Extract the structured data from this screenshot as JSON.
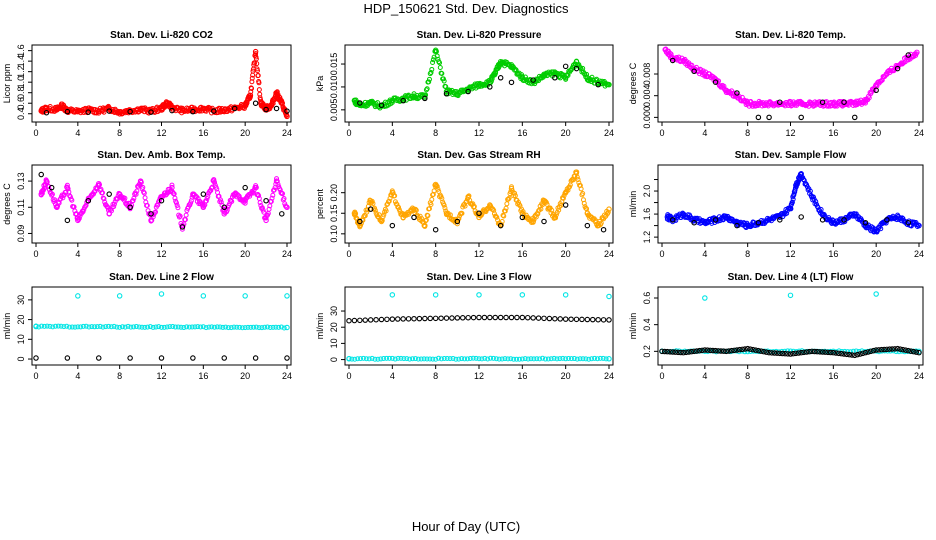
{
  "figure": {
    "title": "HDP_150621  Std. Dev. Diagnostics",
    "xlabel": "Hour of Day (UTC)"
  },
  "chart_data": [
    {
      "type": "scatter",
      "title": "Stan. Dev. Li-820 CO2",
      "ylabel": "Licor ppm",
      "xlim": [
        0,
        24
      ],
      "ylim": [
        0.3,
        1.65
      ],
      "xticks": [
        0,
        4,
        8,
        12,
        16,
        20,
        24
      ],
      "yticks": [
        0.4,
        0.6,
        0.8,
        1.0,
        1.2,
        1.4,
        1.6
      ],
      "ytick_labels": [
        "0.4",
        "0.6",
        "0.8",
        "1.0",
        "1.2",
        "1.4",
        "1.6"
      ],
      "series": [
        {
          "name": "main",
          "color": "#ff0000",
          "x": [
            0.5,
            1,
            2,
            2.5,
            3,
            4,
            5,
            6,
            7,
            8,
            9,
            10,
            11,
            12,
            12.5,
            13,
            14,
            15,
            16,
            17,
            18,
            19,
            20,
            20.5,
            21,
            21.5,
            22,
            22.5,
            23,
            23.5,
            24
          ],
          "y": [
            0.45,
            0.5,
            0.48,
            0.55,
            0.46,
            0.44,
            0.47,
            0.45,
            0.5,
            0.43,
            0.46,
            0.48,
            0.45,
            0.5,
            0.6,
            0.52,
            0.46,
            0.48,
            0.5,
            0.45,
            0.47,
            0.5,
            0.55,
            0.75,
            1.58,
            0.6,
            0.5,
            0.55,
            0.8,
            0.6,
            0.35
          ]
        },
        {
          "name": "overlay",
          "color": "#000000",
          "x": [
            1,
            3,
            5,
            7,
            9,
            11,
            13,
            15,
            17,
            19,
            21,
            22,
            23,
            24
          ],
          "y": [
            0.42,
            0.44,
            0.43,
            0.45,
            0.44,
            0.43,
            0.46,
            0.44,
            0.45,
            0.5,
            0.6,
            0.48,
            0.5,
            0.45
          ]
        }
      ]
    },
    {
      "type": "scatter",
      "title": "Stan. Dev. Li-820 Pressure",
      "ylabel": "kPa",
      "xlim": [
        0,
        24
      ],
      "ylim": [
        0.003,
        0.0185
      ],
      "xticks": [
        0,
        4,
        8,
        12,
        16,
        20,
        24
      ],
      "yticks": [
        0.005,
        0.01,
        0.015
      ],
      "ytick_labels": [
        "0.005",
        "0.010",
        "0.015"
      ],
      "series": [
        {
          "name": "main",
          "color": "#00cc00",
          "x": [
            0.5,
            1,
            2,
            3,
            4,
            5,
            6,
            7,
            8,
            9,
            10,
            11,
            12,
            13,
            13.5,
            14,
            15,
            16,
            17,
            18,
            19,
            20,
            21,
            22,
            23,
            24
          ],
          "y": [
            0.007,
            0.006,
            0.0065,
            0.0058,
            0.007,
            0.0075,
            0.008,
            0.0078,
            0.018,
            0.009,
            0.0085,
            0.0095,
            0.0105,
            0.011,
            0.013,
            0.0155,
            0.0145,
            0.012,
            0.011,
            0.0125,
            0.013,
            0.012,
            0.0155,
            0.012,
            0.011,
            0.0105
          ]
        },
        {
          "name": "overlay",
          "color": "#000000",
          "x": [
            1,
            3,
            5,
            7,
            9,
            11,
            13,
            14,
            15,
            17,
            19,
            20,
            21,
            23
          ],
          "y": [
            0.0065,
            0.006,
            0.007,
            0.0075,
            0.0085,
            0.009,
            0.01,
            0.012,
            0.011,
            0.0115,
            0.012,
            0.0145,
            0.014,
            0.0105
          ]
        }
      ]
    },
    {
      "type": "scatter",
      "title": "Stan. Dev. Li-820 Temp.",
      "ylabel": "degrees C",
      "xlim": [
        0,
        24
      ],
      "ylim": [
        -0.0003,
        0.0128
      ],
      "xticks": [
        0,
        4,
        8,
        12,
        16,
        20,
        24
      ],
      "yticks": [
        0.0,
        0.004,
        0.008
      ],
      "ytick_labels": [
        "0.000",
        "0.004",
        "0.008"
      ],
      "series": [
        {
          "name": "main",
          "color": "#ff00ff",
          "x": [
            0.3,
            1,
            2,
            3,
            4,
            5,
            6,
            7,
            8,
            9,
            10,
            11,
            12,
            13,
            14,
            15,
            16,
            17,
            18,
            19,
            20,
            21,
            22,
            23,
            23.8
          ],
          "y": [
            0.0125,
            0.011,
            0.0105,
            0.009,
            0.008,
            0.007,
            0.005,
            0.004,
            0.0025,
            0.0025,
            0.0025,
            0.0025,
            0.0025,
            0.0025,
            0.0025,
            0.0025,
            0.0025,
            0.0025,
            0.0025,
            0.003,
            0.006,
            0.008,
            0.0095,
            0.011,
            0.012
          ]
        },
        {
          "name": "overlay",
          "color": "#000000",
          "x": [
            1,
            3,
            5,
            7,
            9,
            10,
            11,
            13,
            15,
            17,
            18,
            20,
            22,
            23
          ],
          "y": [
            0.0105,
            0.0085,
            0.0065,
            0.0045,
            0.0,
            0.0,
            0.0028,
            0.0,
            0.0028,
            0.0028,
            0.0,
            0.005,
            0.009,
            0.0115
          ]
        }
      ]
    },
    {
      "type": "scatter",
      "title": "Stan. Dev. Amb. Box Temp.",
      "ylabel": "degrees C",
      "xlim": [
        0,
        24
      ],
      "ylim": [
        0.085,
        0.14
      ],
      "xticks": [
        0,
        4,
        8,
        12,
        16,
        20,
        24
      ],
      "yticks": [
        0.09,
        0.11,
        0.13
      ],
      "ytick_labels": [
        "0.09",
        "0.11",
        "0.13"
      ],
      "series": [
        {
          "name": "main",
          "color": "#ff00ff",
          "x": [
            0.5,
            1,
            2,
            3,
            4,
            5,
            6,
            7,
            8,
            9,
            10,
            11,
            12,
            13,
            14,
            15,
            16,
            17,
            18,
            19,
            20,
            21,
            22,
            23,
            24
          ],
          "y": [
            0.12,
            0.13,
            0.11,
            0.125,
            0.1,
            0.115,
            0.128,
            0.105,
            0.12,
            0.11,
            0.13,
            0.1,
            0.118,
            0.125,
            0.095,
            0.12,
            0.11,
            0.13,
            0.105,
            0.12,
            0.115,
            0.125,
            0.1,
            0.13,
            0.11
          ]
        },
        {
          "name": "overlay",
          "color": "#000000",
          "x": [
            0.5,
            1.5,
            3,
            5,
            7,
            9,
            11,
            12,
            14,
            16,
            18,
            20,
            22,
            23.5
          ],
          "y": [
            0.135,
            0.125,
            0.1,
            0.115,
            0.12,
            0.11,
            0.105,
            0.115,
            0.095,
            0.12,
            0.11,
            0.125,
            0.115,
            0.105
          ]
        }
      ]
    },
    {
      "type": "scatter",
      "title": "Stan. Dev. Gas Stream RH",
      "ylabel": "percent",
      "xlim": [
        0,
        24
      ],
      "ylim": [
        0.085,
        0.26
      ],
      "xticks": [
        0,
        4,
        8,
        12,
        16,
        20,
        24
      ],
      "yticks": [
        0.1,
        0.15,
        0.2
      ],
      "ytick_labels": [
        "0.10",
        "0.15",
        "0.20"
      ],
      "series": [
        {
          "name": "main",
          "color": "#ffa500",
          "x": [
            0.5,
            1,
            2,
            3,
            4,
            5,
            6,
            7,
            8,
            9,
            10,
            11,
            12,
            13,
            14,
            15,
            16,
            17,
            18,
            19,
            20,
            21,
            22,
            23,
            24
          ],
          "y": [
            0.15,
            0.12,
            0.18,
            0.13,
            0.2,
            0.14,
            0.16,
            0.12,
            0.22,
            0.15,
            0.13,
            0.19,
            0.14,
            0.17,
            0.12,
            0.21,
            0.15,
            0.13,
            0.18,
            0.14,
            0.2,
            0.25,
            0.15,
            0.12,
            0.16
          ]
        },
        {
          "name": "overlay",
          "color": "#000000",
          "x": [
            1,
            2,
            4,
            6,
            8,
            10,
            12,
            14,
            16,
            18,
            20,
            22,
            23.5
          ],
          "y": [
            0.13,
            0.16,
            0.12,
            0.14,
            0.11,
            0.13,
            0.15,
            0.12,
            0.14,
            0.13,
            0.17,
            0.12,
            0.11
          ]
        }
      ]
    },
    {
      "type": "scatter",
      "title": "Stan. Dev. Sample Flow",
      "ylabel": "ml/min",
      "xlim": [
        0,
        24
      ],
      "ylim": [
        1.15,
        2.4
      ],
      "xticks": [
        0,
        4,
        8,
        12,
        16,
        20,
        24
      ],
      "yticks": [
        1.2,
        1.4,
        1.6,
        1.8,
        2.0,
        2.2
      ],
      "ytick_labels": [
        "1.2",
        "",
        "1.6",
        "",
        "2.0",
        ""
      ],
      "series": [
        {
          "name": "main",
          "color": "#0000ff",
          "x": [
            0.5,
            1,
            2,
            3,
            4,
            5,
            6,
            7,
            8,
            9,
            10,
            11,
            12,
            12.5,
            13,
            14,
            15,
            16,
            17,
            18,
            19,
            20,
            21,
            22,
            23,
            24
          ],
          "y": [
            1.55,
            1.5,
            1.6,
            1.5,
            1.45,
            1.5,
            1.55,
            1.45,
            1.4,
            1.45,
            1.5,
            1.55,
            1.7,
            2.1,
            2.3,
            1.9,
            1.6,
            1.45,
            1.5,
            1.6,
            1.4,
            1.3,
            1.5,
            1.55,
            1.45,
            1.4
          ]
        },
        {
          "name": "overlay",
          "color": "#000000",
          "x": [
            1,
            3,
            5,
            7,
            9,
            11,
            13,
            15,
            17,
            19,
            21,
            23
          ],
          "y": [
            1.5,
            1.45,
            1.5,
            1.4,
            1.45,
            1.5,
            1.55,
            1.5,
            1.5,
            1.45,
            1.5,
            1.45
          ]
        }
      ]
    },
    {
      "type": "scatter",
      "title": "Stan. Dev. Line 2 Flow",
      "ylabel": "ml/min",
      "xlim": [
        0,
        24
      ],
      "ylim": [
        -1.5,
        35
      ],
      "xticks": [
        0,
        4,
        8,
        12,
        16,
        20,
        24
      ],
      "yticks": [
        0,
        10,
        20,
        30
      ],
      "ytick_labels": [
        "0",
        "10",
        "20",
        "30"
      ],
      "series": [
        {
          "name": "band",
          "color": "#00e5e5",
          "x": [
            0,
            24
          ],
          "y": [
            16.5,
            16.0
          ]
        },
        {
          "name": "spikes",
          "color": "#00e5e5",
          "x": [
            4,
            8,
            12,
            16,
            20,
            24
          ],
          "y": [
            32,
            32,
            33,
            32,
            32,
            32
          ]
        },
        {
          "name": "overlay",
          "color": "#000000",
          "x": [
            0,
            24
          ],
          "y": [
            0.5,
            0.5
          ]
        }
      ]
    },
    {
      "type": "scatter",
      "title": "Stan. Dev. Line 3 Flow",
      "ylabel": "ml/min",
      "xlim": [
        0,
        24
      ],
      "ylim": [
        -1.5,
        43
      ],
      "xticks": [
        0,
        4,
        8,
        12,
        16,
        20,
        24
      ],
      "yticks": [
        0,
        10,
        20,
        30
      ],
      "ytick_labels": [
        "0",
        "10",
        "20",
        "30"
      ],
      "series": [
        {
          "name": "band",
          "color": "#00e5e5",
          "x": [
            0,
            24
          ],
          "y": [
            0.5,
            0.5
          ]
        },
        {
          "name": "spikes",
          "color": "#00e5e5",
          "x": [
            4,
            8,
            12,
            16,
            20,
            24
          ],
          "y": [
            40,
            40,
            40,
            40,
            40,
            39
          ]
        },
        {
          "name": "overlay",
          "color": "#000000",
          "x": [
            0,
            4,
            8,
            12,
            16,
            20,
            24
          ],
          "y": [
            24,
            25,
            25.5,
            26,
            26,
            25,
            24.5
          ]
        }
      ]
    },
    {
      "type": "scatter",
      "title": "Stan. Dev. Line 4 (LT) Flow",
      "ylabel": "ml/min",
      "xlim": [
        0,
        24
      ],
      "ylim": [
        0.12,
        0.66
      ],
      "xticks": [
        0,
        4,
        8,
        12,
        16,
        20,
        24
      ],
      "yticks": [
        0.2,
        0.4,
        0.6
      ],
      "ytick_labels": [
        "0.2",
        "0.4",
        "0.6"
      ],
      "series": [
        {
          "name": "band",
          "color": "#00e5e5",
          "x": [
            0,
            24
          ],
          "y": [
            0.2,
            0.2
          ]
        },
        {
          "name": "spikes",
          "color": "#00e5e5",
          "x": [
            4,
            12,
            20
          ],
          "y": [
            0.6,
            0.62,
            0.63
          ]
        },
        {
          "name": "overlay",
          "color": "#000000",
          "x": [
            0,
            2,
            4,
            6,
            8,
            10,
            12,
            14,
            16,
            18,
            20,
            22,
            24
          ],
          "y": [
            0.2,
            0.19,
            0.21,
            0.2,
            0.22,
            0.19,
            0.18,
            0.2,
            0.19,
            0.17,
            0.21,
            0.22,
            0.19
          ]
        }
      ]
    }
  ]
}
